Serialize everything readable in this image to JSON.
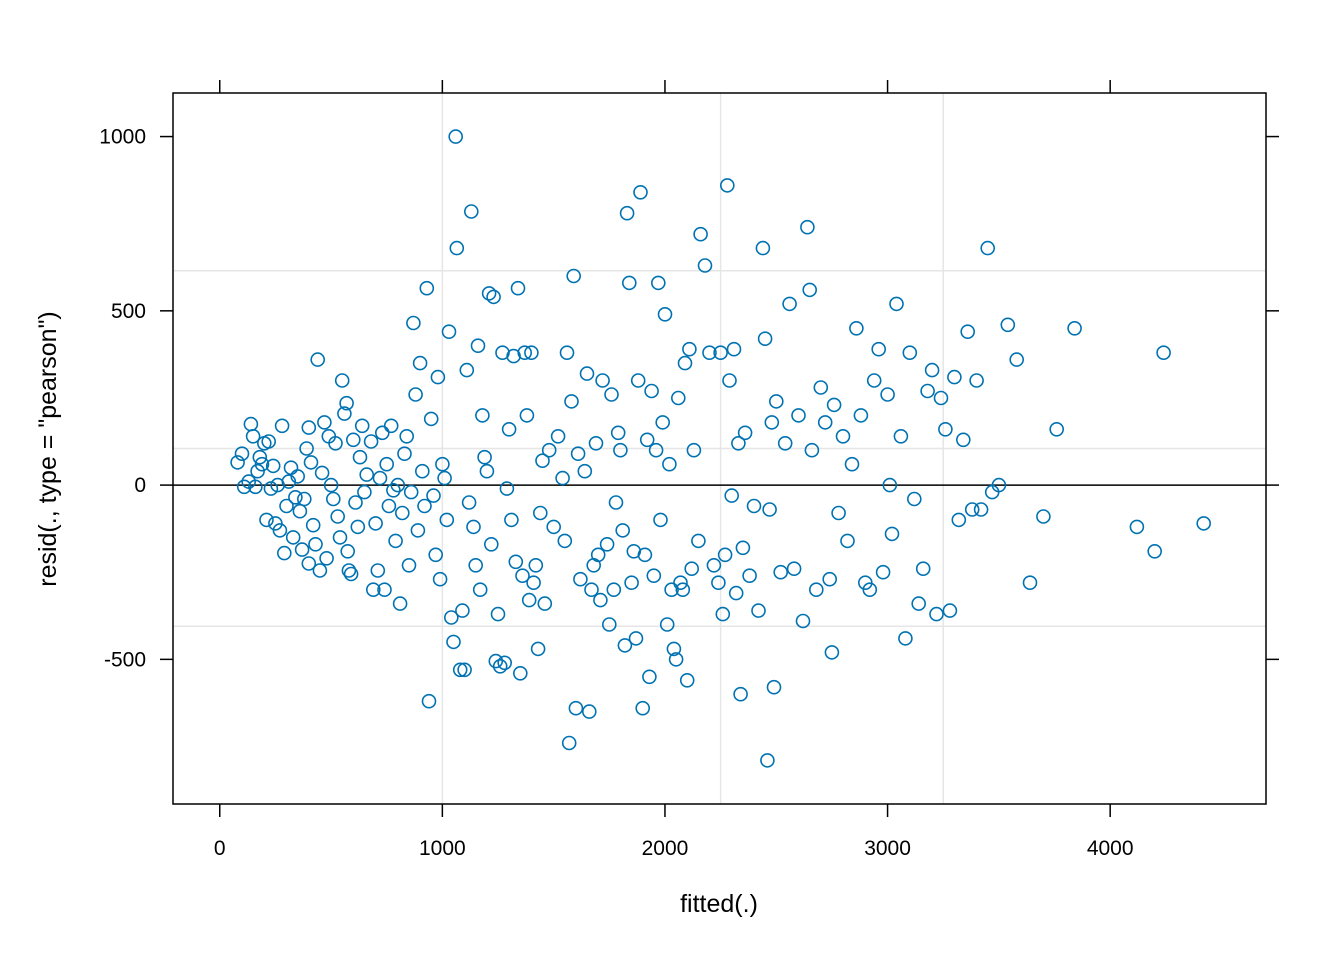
{
  "chart_data": {
    "type": "scatter",
    "title": "",
    "xlabel": "fitted(.)",
    "ylabel": "resid(., type = \"pearson\")",
    "xlim": [
      -210,
      4700
    ],
    "ylim": [
      -915,
      1125
    ],
    "x_ticks": [
      0,
      1000,
      2000,
      3000,
      4000
    ],
    "y_ticks": [
      -500,
      0,
      500,
      1000
    ],
    "reference_line_y": 0,
    "grid": {
      "x": [
        1000,
        2250,
        3250
      ],
      "y": [
        -405,
        105,
        615
      ]
    },
    "colors": {
      "points": "#0072B2",
      "grid": "#E6E6E6",
      "axes": "#000000"
    },
    "series": [
      {
        "points": [
          [
            80,
            65
          ],
          [
            100,
            90
          ],
          [
            110,
            -5
          ],
          [
            130,
            10
          ],
          [
            140,
            175
          ],
          [
            150,
            140
          ],
          [
            160,
            -5
          ],
          [
            170,
            40
          ],
          [
            180,
            80
          ],
          [
            190,
            60
          ],
          [
            200,
            120
          ],
          [
            210,
            -100
          ],
          [
            220,
            125
          ],
          [
            230,
            -10
          ],
          [
            240,
            55
          ],
          [
            250,
            -110
          ],
          [
            260,
            0
          ],
          [
            270,
            -130
          ],
          [
            280,
            170
          ],
          [
            290,
            -195
          ],
          [
            300,
            -60
          ],
          [
            310,
            10
          ],
          [
            320,
            50
          ],
          [
            330,
            -150
          ],
          [
            340,
            -35
          ],
          [
            350,
            25
          ],
          [
            360,
            -75
          ],
          [
            370,
            -185
          ],
          [
            380,
            -40
          ],
          [
            390,
            105
          ],
          [
            400,
            165
          ],
          [
            400,
            -225
          ],
          [
            410,
            65
          ],
          [
            420,
            -115
          ],
          [
            430,
            -170
          ],
          [
            440,
            360
          ],
          [
            450,
            -245
          ],
          [
            460,
            35
          ],
          [
            470,
            180
          ],
          [
            480,
            -210
          ],
          [
            490,
            140
          ],
          [
            500,
            0
          ],
          [
            510,
            -40
          ],
          [
            520,
            120
          ],
          [
            530,
            -90
          ],
          [
            540,
            -150
          ],
          [
            550,
            300
          ],
          [
            560,
            205
          ],
          [
            570,
            235
          ],
          [
            575,
            -190
          ],
          [
            580,
            -245
          ],
          [
            590,
            -255
          ],
          [
            600,
            130
          ],
          [
            610,
            -50
          ],
          [
            620,
            -120
          ],
          [
            630,
            80
          ],
          [
            640,
            170
          ],
          [
            650,
            -20
          ],
          [
            660,
            30
          ],
          [
            680,
            125
          ],
          [
            690,
            -300
          ],
          [
            700,
            -110
          ],
          [
            710,
            -245
          ],
          [
            720,
            20
          ],
          [
            730,
            150
          ],
          [
            740,
            -300
          ],
          [
            750,
            60
          ],
          [
            760,
            -60
          ],
          [
            770,
            170
          ],
          [
            780,
            -15
          ],
          [
            790,
            -160
          ],
          [
            800,
            0
          ],
          [
            810,
            -340
          ],
          [
            820,
            -80
          ],
          [
            830,
            90
          ],
          [
            840,
            140
          ],
          [
            850,
            -230
          ],
          [
            860,
            -20
          ],
          [
            870,
            465
          ],
          [
            880,
            260
          ],
          [
            890,
            -130
          ],
          [
            900,
            350
          ],
          [
            910,
            40
          ],
          [
            920,
            -60
          ],
          [
            930,
            565
          ],
          [
            940,
            -620
          ],
          [
            950,
            190
          ],
          [
            960,
            -30
          ],
          [
            970,
            -200
          ],
          [
            980,
            310
          ],
          [
            990,
            -270
          ],
          [
            1000,
            60
          ],
          [
            1010,
            20
          ],
          [
            1020,
            -100
          ],
          [
            1030,
            440
          ],
          [
            1040,
            -380
          ],
          [
            1050,
            -450
          ],
          [
            1060,
            1000
          ],
          [
            1065,
            680
          ],
          [
            1080,
            -530
          ],
          [
            1090,
            -360
          ],
          [
            1100,
            -530
          ],
          [
            1110,
            330
          ],
          [
            1120,
            -50
          ],
          [
            1130,
            785
          ],
          [
            1140,
            -120
          ],
          [
            1150,
            -230
          ],
          [
            1160,
            400
          ],
          [
            1170,
            -300
          ],
          [
            1180,
            200
          ],
          [
            1190,
            80
          ],
          [
            1200,
            40
          ],
          [
            1210,
            550
          ],
          [
            1220,
            -170
          ],
          [
            1230,
            540
          ],
          [
            1240,
            -505
          ],
          [
            1250,
            -370
          ],
          [
            1260,
            -520
          ],
          [
            1270,
            380
          ],
          [
            1280,
            -510
          ],
          [
            1290,
            -10
          ],
          [
            1300,
            160
          ],
          [
            1310,
            -100
          ],
          [
            1320,
            370
          ],
          [
            1330,
            -220
          ],
          [
            1340,
            565
          ],
          [
            1350,
            -540
          ],
          [
            1360,
            -260
          ],
          [
            1370,
            380
          ],
          [
            1380,
            200
          ],
          [
            1390,
            -330
          ],
          [
            1400,
            380
          ],
          [
            1410,
            -280
          ],
          [
            1420,
            -230
          ],
          [
            1430,
            -470
          ],
          [
            1440,
            -80
          ],
          [
            1450,
            70
          ],
          [
            1460,
            -340
          ],
          [
            1480,
            100
          ],
          [
            1500,
            -120
          ],
          [
            1520,
            140
          ],
          [
            1540,
            20
          ],
          [
            1550,
            -160
          ],
          [
            1560,
            380
          ],
          [
            1570,
            -740
          ],
          [
            1580,
            240
          ],
          [
            1590,
            600
          ],
          [
            1600,
            -640
          ],
          [
            1610,
            90
          ],
          [
            1620,
            -270
          ],
          [
            1640,
            40
          ],
          [
            1650,
            320
          ],
          [
            1660,
            -650
          ],
          [
            1670,
            -300
          ],
          [
            1680,
            -230
          ],
          [
            1690,
            120
          ],
          [
            1700,
            -200
          ],
          [
            1710,
            -330
          ],
          [
            1720,
            300
          ],
          [
            1740,
            -170
          ],
          [
            1750,
            -400
          ],
          [
            1760,
            260
          ],
          [
            1770,
            -300
          ],
          [
            1780,
            -50
          ],
          [
            1790,
            150
          ],
          [
            1800,
            100
          ],
          [
            1810,
            -130
          ],
          [
            1820,
            -460
          ],
          [
            1830,
            780
          ],
          [
            1840,
            580
          ],
          [
            1850,
            -280
          ],
          [
            1860,
            -190
          ],
          [
            1870,
            -440
          ],
          [
            1880,
            300
          ],
          [
            1890,
            840
          ],
          [
            1900,
            -640
          ],
          [
            1910,
            -200
          ],
          [
            1920,
            130
          ],
          [
            1930,
            -550
          ],
          [
            1940,
            270
          ],
          [
            1950,
            -260
          ],
          [
            1960,
            100
          ],
          [
            1970,
            580
          ],
          [
            1980,
            -100
          ],
          [
            1990,
            180
          ],
          [
            2000,
            490
          ],
          [
            2010,
            -400
          ],
          [
            2020,
            60
          ],
          [
            2030,
            -300
          ],
          [
            2040,
            -470
          ],
          [
            2050,
            -500
          ],
          [
            2060,
            250
          ],
          [
            2070,
            -280
          ],
          [
            2080,
            -300
          ],
          [
            2090,
            350
          ],
          [
            2100,
            -560
          ],
          [
            2110,
            390
          ],
          [
            2120,
            -240
          ],
          [
            2130,
            100
          ],
          [
            2150,
            -160
          ],
          [
            2160,
            720
          ],
          [
            2180,
            630
          ],
          [
            2200,
            380
          ],
          [
            2220,
            -230
          ],
          [
            2240,
            -280
          ],
          [
            2250,
            380
          ],
          [
            2260,
            -370
          ],
          [
            2270,
            -200
          ],
          [
            2280,
            860
          ],
          [
            2290,
            300
          ],
          [
            2300,
            -30
          ],
          [
            2310,
            390
          ],
          [
            2320,
            -310
          ],
          [
            2330,
            120
          ],
          [
            2340,
            -600
          ],
          [
            2350,
            -180
          ],
          [
            2360,
            150
          ],
          [
            2380,
            -260
          ],
          [
            2400,
            -60
          ],
          [
            2420,
            -360
          ],
          [
            2440,
            680
          ],
          [
            2450,
            420
          ],
          [
            2460,
            -790
          ],
          [
            2470,
            -70
          ],
          [
            2480,
            180
          ],
          [
            2490,
            -580
          ],
          [
            2500,
            240
          ],
          [
            2520,
            -250
          ],
          [
            2540,
            120
          ],
          [
            2560,
            520
          ],
          [
            2580,
            -240
          ],
          [
            2600,
            200
          ],
          [
            2620,
            -390
          ],
          [
            2640,
            740
          ],
          [
            2650,
            560
          ],
          [
            2660,
            100
          ],
          [
            2680,
            -300
          ],
          [
            2700,
            280
          ],
          [
            2720,
            180
          ],
          [
            2740,
            -270
          ],
          [
            2750,
            -480
          ],
          [
            2760,
            230
          ],
          [
            2780,
            -80
          ],
          [
            2800,
            140
          ],
          [
            2820,
            -160
          ],
          [
            2840,
            60
          ],
          [
            2860,
            450
          ],
          [
            2880,
            200
          ],
          [
            2900,
            -280
          ],
          [
            2920,
            -300
          ],
          [
            2940,
            300
          ],
          [
            2960,
            390
          ],
          [
            2980,
            -250
          ],
          [
            3000,
            260
          ],
          [
            3010,
            0
          ],
          [
            3020,
            -140
          ],
          [
            3040,
            520
          ],
          [
            3060,
            140
          ],
          [
            3080,
            -440
          ],
          [
            3100,
            380
          ],
          [
            3120,
            -40
          ],
          [
            3140,
            -340
          ],
          [
            3160,
            -240
          ],
          [
            3180,
            270
          ],
          [
            3200,
            330
          ],
          [
            3220,
            -370
          ],
          [
            3240,
            250
          ],
          [
            3260,
            160
          ],
          [
            3280,
            -360
          ],
          [
            3300,
            310
          ],
          [
            3320,
            -100
          ],
          [
            3340,
            130
          ],
          [
            3360,
            440
          ],
          [
            3380,
            -70
          ],
          [
            3400,
            300
          ],
          [
            3420,
            -70
          ],
          [
            3450,
            680
          ],
          [
            3470,
            -20
          ],
          [
            3500,
            0
          ],
          [
            3540,
            460
          ],
          [
            3580,
            360
          ],
          [
            3640,
            -280
          ],
          [
            3700,
            -90
          ],
          [
            3760,
            160
          ],
          [
            3840,
            450
          ],
          [
            4120,
            -120
          ],
          [
            4200,
            -190
          ],
          [
            4240,
            380
          ],
          [
            4420,
            -110
          ]
        ]
      }
    ]
  }
}
